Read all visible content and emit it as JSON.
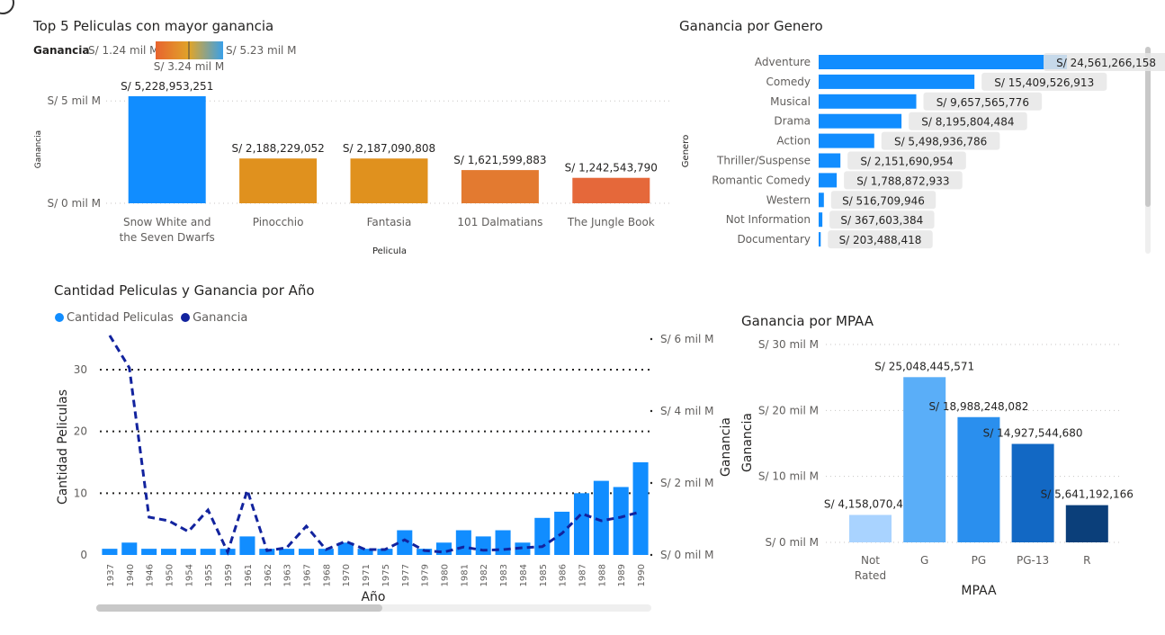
{
  "corner_icon": "focus-circle-icon",
  "panel1": {
    "title": "Top 5 Peliculas con mayor ganancia",
    "gradient_legend": {
      "label": "Ganancia",
      "min": "S/ 1.24 mil M",
      "max": "S/ 5.23 mil M",
      "mid": "S/ 3.24 mil M",
      "colors": [
        "#e8642e",
        "#e0a52a",
        "#3aa0e8"
      ]
    }
  },
  "panel2": {
    "title": "Ganancia por Genero"
  },
  "panel3": {
    "title": "Cantidad Peliculas y Ganancia por Año"
  },
  "panel4": {
    "title": "Ganancia por MPAA"
  },
  "chart_data": [
    {
      "type": "bar",
      "title": "Top 5 Peliculas con mayor ganancia",
      "xlabel": "Pelicula",
      "ylabel": "Ganancia",
      "categories": [
        "Snow White and the Seven Dwarfs",
        "Pinocchio",
        "Fantasia",
        "101 Dalmatians",
        "The Jungle Book"
      ],
      "category_lines": [
        [
          "Snow White and",
          "the Seven Dwarfs"
        ],
        [
          "Pinocchio"
        ],
        [
          "Fantasia"
        ],
        [
          "101 Dalmatians"
        ],
        [
          "The Jungle Book"
        ]
      ],
      "values": [
        5228953251,
        2188229052,
        2187090808,
        1621599883,
        1242543790
      ],
      "data_labels": [
        "S/ 5,228,953,251",
        "S/ 2,188,229,052",
        "S/ 2,187,090,808",
        "S/ 1,621,599,883",
        "S/ 1,242,543,790"
      ],
      "bar_colors": [
        "#118dff",
        "#e0911e",
        "#e0911e",
        "#e37a30",
        "#e5683a"
      ],
      "yticks": [
        {
          "value": 0,
          "label": "S/ 0 mil M"
        },
        {
          "value": 5000000000,
          "label": "S/ 5 mil M"
        }
      ],
      "ylim": [
        0,
        5228953251
      ]
    },
    {
      "type": "bar",
      "orientation": "horizontal",
      "title": "Ganancia por Genero",
      "ylabel": "Genero",
      "categories": [
        "Adventure",
        "Comedy",
        "Musical",
        "Drama",
        "Action",
        "Thriller/Suspense",
        "Romantic Comedy",
        "Western",
        "Not Information",
        "Documentary"
      ],
      "values": [
        24561266158,
        15409526913,
        9657565776,
        8195804484,
        5498936786,
        2151690954,
        1788872933,
        516709946,
        367603384,
        203488418
      ],
      "data_labels": [
        "S/ 24,561,266,158",
        "S/ 15,409,526,913",
        "S/ 9,657,565,776",
        "S/ 8,195,804,484",
        "S/ 5,498,936,786",
        "S/ 2,151,690,954",
        "S/ 1,788,872,933",
        "S/ 516,709,946",
        "S/ 367,603,384",
        "S/ 203,488,418"
      ],
      "bar_color": "#118dff",
      "xlim": [
        0,
        24561266158
      ]
    },
    {
      "type": "bar+line",
      "title": "Cantidad Peliculas y Ganancia por Año",
      "xlabel": "Año",
      "ylabel": "Cantidad Peliculas",
      "legend": [
        {
          "name": "Cantidad Peliculas",
          "color": "#118dff"
        },
        {
          "name": "Ganancia",
          "color": "#12239e"
        }
      ],
      "legend_position": "top-left",
      "categories": [
        "1937",
        "1940",
        "1946",
        "1950",
        "1954",
        "1955",
        "1959",
        "1961",
        "1962",
        "1963",
        "1967",
        "1968",
        "1970",
        "1971",
        "1975",
        "1977",
        "1979",
        "1980",
        "1981",
        "1982",
        "1983",
        "1984",
        "1985",
        "1986",
        "1987",
        "1988",
        "1989",
        "1990"
      ],
      "series": [
        {
          "name": "Cantidad Peliculas",
          "type": "bar",
          "axis": "left",
          "color": "#118dff",
          "values": [
            1,
            2,
            1,
            1,
            1,
            1,
            1,
            3,
            1,
            1,
            1,
            1,
            2,
            1,
            1,
            4,
            1,
            2,
            4,
            3,
            4,
            2,
            6,
            7,
            10,
            12,
            11,
            15
          ]
        },
        {
          "name": "Ganancia",
          "type": "line",
          "axis": "right",
          "color": "#12239e",
          "dash": true,
          "values": [
            6100000000,
            5200000000,
            1050000000,
            950000000,
            650000000,
            1250000000,
            80000000,
            1800000000,
            120000000,
            200000000,
            800000000,
            150000000,
            380000000,
            150000000,
            150000000,
            420000000,
            120000000,
            80000000,
            220000000,
            130000000,
            150000000,
            200000000,
            230000000,
            600000000,
            1150000000,
            950000000,
            1050000000,
            1200000000
          ]
        }
      ],
      "ylim_left": [
        0,
        30
      ],
      "yticks_left": [
        0,
        10,
        20,
        30
      ],
      "ylim_right": [
        0,
        6000000000
      ],
      "yticks_right": [
        {
          "value": 0,
          "label": "S/ 0 mil M"
        },
        {
          "value": 2000000000,
          "label": "S/ 2 mil M"
        },
        {
          "value": 4000000000,
          "label": "S/ 4 mil M"
        },
        {
          "value": 6000000000,
          "label": "S/ 6 mil M"
        }
      ],
      "grid": true
    },
    {
      "type": "bar",
      "title": "Ganancia por MPAA",
      "xlabel": "MPAA",
      "ylabel": "Ganancia",
      "categories": [
        "Not Rated",
        "G",
        "PG",
        "PG-13",
        "R"
      ],
      "category_lines": [
        [
          "Not",
          "Rated"
        ],
        [
          "G"
        ],
        [
          "PG"
        ],
        [
          "PG-13"
        ],
        [
          "R"
        ]
      ],
      "values": [
        4158070498,
        25048445571,
        18988248082,
        14927544680,
        5641192166
      ],
      "data_labels": [
        "S/ 4,158,070,498",
        "S/ 25,048,445,571",
        "S/ 18,988,248,082",
        "S/ 14,927,544,680",
        "S/ 5,641,192,166"
      ],
      "bar_colors": [
        "#a9d3ff",
        "#5aaef8",
        "#2a8fee",
        "#1268c4",
        "#0b3f7a"
      ],
      "ylim": [
        0,
        30000000000
      ],
      "yticks": [
        {
          "value": 0,
          "label": "S/ 0 mil M"
        },
        {
          "value": 10000000000,
          "label": "S/ 10 mil M"
        },
        {
          "value": 20000000000,
          "label": "S/ 20 mil M"
        },
        {
          "value": 30000000000,
          "label": "S/ 30 mil M"
        }
      ],
      "grid": true
    }
  ]
}
